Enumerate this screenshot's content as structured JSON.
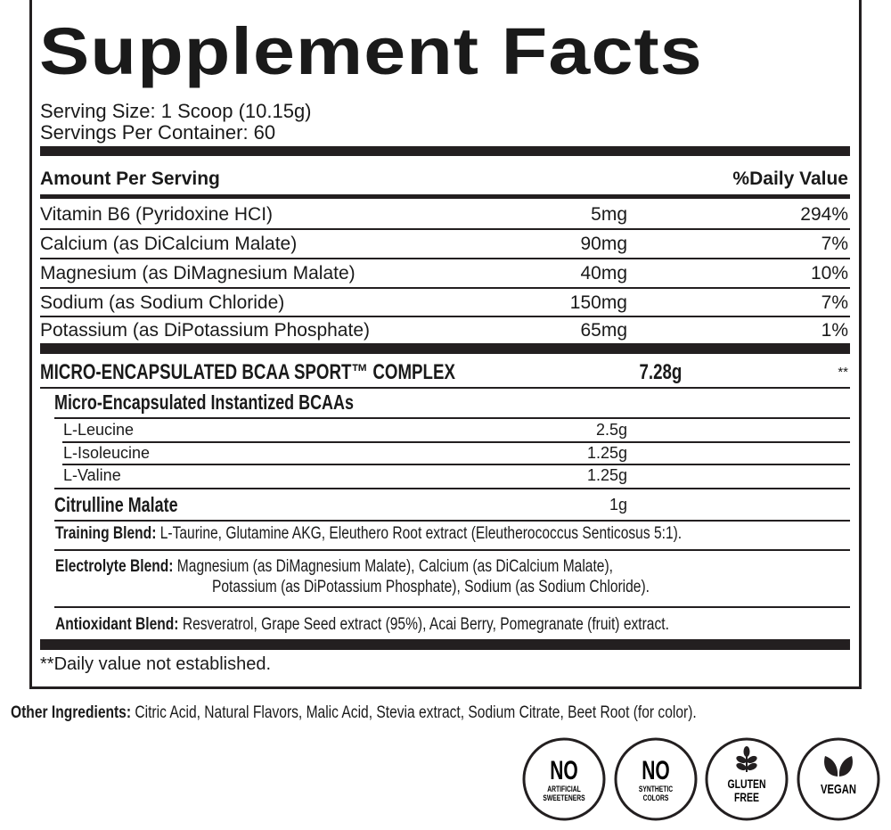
{
  "title": "Supplement Facts",
  "serving_size": "Serving Size: 1 Scoop (10.15g)",
  "servings_per_container": "Servings Per Container: 60",
  "header": {
    "amount": "Amount Per Serving",
    "daily_value": "%Daily Value"
  },
  "nutrients": [
    {
      "name": "Vitamin B6 (Pyridoxine HCI)",
      "amount": "5mg",
      "dv": "294%"
    },
    {
      "name": "Calcium (as DiCalcium Malate)",
      "amount": "90mg",
      "dv": "7%"
    },
    {
      "name": "Magnesium (as DiMagnesium Malate)",
      "amount": "40mg",
      "dv": "10%"
    },
    {
      "name": "Sodium (as Sodium Chloride)",
      "amount": "150mg",
      "dv": "7%"
    },
    {
      "name": "Potassium (as DiPotassium Phosphate)",
      "amount": "65mg",
      "dv": "1%"
    }
  ],
  "complex": {
    "name": "MICRO-ENCAPSULATED BCAA SPORT™ COMPLEX",
    "amount": "7.28g",
    "dv": "**"
  },
  "bcaa_header": "Micro-Encapsulated Instantized BCAAs",
  "bcaas": [
    {
      "name": "L-Leucine",
      "amount": "2.5g"
    },
    {
      "name": "L-Isoleucine",
      "amount": "1.25g"
    },
    {
      "name": "L-Valine",
      "amount": "1.25g"
    }
  ],
  "citrulline": {
    "name": "Citrulline Malate",
    "amount": "1g"
  },
  "blends": {
    "training": {
      "label": "Training Blend:",
      "text": "L-Taurine, Glutamine AKG, Eleuthero Root extract (Eleutherococcus Senticosus 5:1)."
    },
    "electrolyte": {
      "label": "Electrolyte Blend:",
      "line1": "Magnesium (as DiMagnesium Malate), Calcium (as DiCalcium Malate),",
      "line2": "Potassium (as DiPotassium Phosphate), Sodium (as Sodium Chloride)."
    },
    "antioxidant": {
      "label": "Antioxidant Blend:",
      "text": "Resveratrol, Grape Seed extract (95%), Acai Berry, Pomegranate (fruit) extract."
    }
  },
  "footnote": "**Daily value not established.",
  "other_ingredients": {
    "label": "Other Ingredients:",
    "text": "Citric Acid, Natural Flavors, Malic Acid, Stevia extract, Sodium Citrate, Beet Root (for color)."
  },
  "badges": [
    {
      "big": "NO",
      "line1": "ARTIFICIAL",
      "line2": "SWEETENERS",
      "icon": "none"
    },
    {
      "big": "NO",
      "line1": "SYNTHETIC",
      "line2": "COLORS",
      "icon": "none"
    },
    {
      "line1": "GLUTEN",
      "line2": "FREE",
      "icon": "wheat-icon"
    },
    {
      "line1": "VEGAN",
      "icon": "leaf-icon"
    }
  ]
}
